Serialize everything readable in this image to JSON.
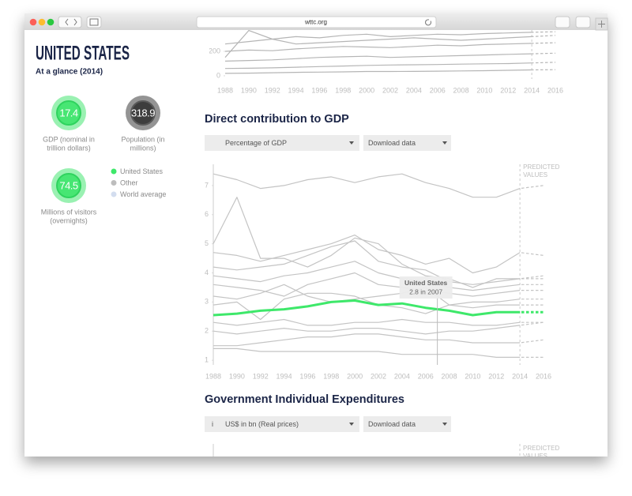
{
  "browser": {
    "url": "wttc.org"
  },
  "sidebar": {
    "title": "UNITED STATES",
    "subtitle": "At a glance (2014)",
    "stats": [
      {
        "value": 17.4,
        "label": [
          "GDP (nominal in",
          "trillion dollars)"
        ],
        "color": "#47e673"
      },
      {
        "value": 318.9,
        "label": [
          "Population (in",
          "millions)"
        ],
        "color": "#3d3d3d"
      },
      {
        "value": 74.5,
        "label": [
          "Millions of visitors",
          "(overnights)"
        ],
        "color": "#47e673"
      }
    ],
    "legend": [
      {
        "name": "United States",
        "color": "#3ee86a"
      },
      {
        "name": "Other",
        "color": "#bdbdbd"
      },
      {
        "name": "World average",
        "color": "#d3ddef"
      }
    ]
  },
  "top_chart": {
    "type": "line",
    "x": [
      1988,
      1990,
      1992,
      1994,
      1996,
      1998,
      2000,
      2002,
      2004,
      2006,
      2008,
      2010,
      2012,
      2014,
      2016
    ],
    "xlim": [
      1988,
      2016
    ],
    "xticks": [
      1988,
      1990,
      1992,
      1994,
      1996,
      1998,
      2000,
      2002,
      2004,
      2006,
      2008,
      2010,
      2012,
      2014,
      2016
    ],
    "ylim": [
      -26,
      374
    ],
    "yticks": [
      0,
      200
    ],
    "predicted_from": 2014,
    "series": [
      {
        "color": "#b5b5b5",
        "values": [
          20,
          22,
          25,
          28,
          30,
          32,
          35,
          35,
          36,
          38,
          40,
          42,
          45,
          48,
          50
        ]
      },
      {
        "color": "#b5b5b5",
        "values": [
          60,
          62,
          65,
          70,
          75,
          80,
          85,
          88,
          90,
          92,
          95,
          98,
          100,
          105,
          110
        ]
      },
      {
        "color": "#b5b5b5",
        "values": [
          120,
          125,
          130,
          140,
          150,
          155,
          160,
          150,
          155,
          160,
          165,
          170,
          175,
          180,
          185
        ]
      },
      {
        "color": "#b5b5b5",
        "values": [
          200,
          210,
          205,
          220,
          230,
          240,
          235,
          230,
          240,
          250,
          245,
          255,
          260,
          265,
          270
        ]
      },
      {
        "color": "#b5b5b5",
        "values": [
          260,
          280,
          300,
          320,
          310,
          330,
          340,
          320,
          330,
          340,
          335,
          345,
          350,
          355,
          360
        ]
      },
      {
        "color": "#b5b5b5",
        "values": [
          150,
          370,
          300,
          260,
          270,
          280,
          290,
          300,
          310,
          300,
          290,
          300,
          310,
          320,
          330
        ]
      }
    ]
  },
  "gdp_section": {
    "heading": "Direct contribution to GDP",
    "dropdown": "Percentage of GDP",
    "download": "Download data"
  },
  "chart_data": {
    "type": "line",
    "x": [
      1988,
      1990,
      1992,
      1994,
      1996,
      1998,
      2000,
      2002,
      2004,
      2006,
      2008,
      2010,
      2012,
      2014,
      2016
    ],
    "xlim": [
      1988,
      2016
    ],
    "xticks": [
      1988,
      1990,
      1992,
      1994,
      1996,
      1998,
      2000,
      2002,
      2004,
      2006,
      2008,
      2010,
      2012,
      2014,
      2016
    ],
    "ylim": [
      0.84,
      7.73
    ],
    "yticks": [
      1,
      2,
      3,
      4,
      5,
      6,
      7
    ],
    "predicted_from": 2014,
    "predicted_label": [
      "PREDICTED",
      "VALUES"
    ],
    "series": [
      {
        "color": "#c4c4c4",
        "values": [
          7.4,
          7.2,
          6.9,
          7.0,
          7.2,
          7.3,
          7.1,
          7.3,
          7.4,
          7.1,
          6.9,
          6.6,
          6.6,
          6.9,
          7.0
        ]
      },
      {
        "color": "#c4c4c4",
        "values": [
          5.0,
          6.6,
          4.5,
          4.5,
          4.2,
          4.6,
          5.2,
          5.0,
          4.3,
          3.9,
          3.8,
          3.5,
          3.8,
          3.8,
          3.9
        ]
      },
      {
        "color": "#c4c4c4",
        "values": [
          4.7,
          4.6,
          4.4,
          4.6,
          4.8,
          5.0,
          5.3,
          4.8,
          4.6,
          4.3,
          4.5,
          4.0,
          4.2,
          4.7,
          4.6
        ]
      },
      {
        "color": "#c4c4c4",
        "values": [
          4.2,
          4.1,
          4.2,
          4.3,
          4.6,
          4.9,
          5.1,
          4.4,
          4.2,
          4.1,
          3.7,
          3.6,
          3.7,
          3.8,
          3.8
        ]
      },
      {
        "color": "#c4c4c4",
        "values": [
          3.9,
          3.8,
          3.7,
          3.9,
          4.0,
          4.2,
          4.4,
          4.0,
          3.8,
          3.7,
          3.5,
          3.4,
          3.5,
          3.6,
          3.6
        ]
      },
      {
        "color": "#c4c4c4",
        "values": [
          3.6,
          3.5,
          3.4,
          3.2,
          3.6,
          3.8,
          4.0,
          3.6,
          3.5,
          3.4,
          3.3,
          3.2,
          3.3,
          3.4,
          3.4
        ]
      },
      {
        "color": "#c4c4c4",
        "values": [
          3.2,
          3.1,
          3.3,
          3.6,
          3.2,
          3.0,
          3.1,
          3.2,
          3.3,
          3.5,
          2.9,
          3.0,
          3.0,
          3.1,
          3.1
        ]
      },
      {
        "color": "#c4c4c4",
        "values": [
          2.9,
          3.0,
          2.4,
          3.1,
          3.3,
          3.3,
          3.2,
          2.9,
          2.8,
          2.6,
          2.9,
          2.8,
          2.9,
          2.9,
          2.9
        ]
      },
      {
        "color": "#c4c4c4",
        "values": [
          2.3,
          2.2,
          2.3,
          2.4,
          2.2,
          2.2,
          2.3,
          2.3,
          2.4,
          2.3,
          2.3,
          2.2,
          2.2,
          2.3,
          2.3
        ]
      },
      {
        "color": "#c4c4c4",
        "values": [
          2.0,
          1.9,
          2.0,
          2.1,
          2.0,
          2.0,
          2.1,
          2.1,
          2.0,
          1.9,
          2.0,
          2.0,
          2.1,
          2.2,
          2.3
        ]
      },
      {
        "color": "#c4c4c4",
        "values": [
          1.5,
          1.5,
          1.6,
          1.7,
          1.8,
          1.8,
          1.9,
          1.9,
          1.8,
          1.7,
          1.7,
          1.6,
          1.6,
          1.6,
          1.7
        ]
      },
      {
        "color": "#c4c4c4",
        "values": [
          1.4,
          1.4,
          1.3,
          1.3,
          1.3,
          1.3,
          1.3,
          1.3,
          1.2,
          1.2,
          1.2,
          1.2,
          1.1,
          1.1,
          1.1
        ]
      },
      {
        "color": "#3ee86a",
        "values": [
          2.55,
          2.6,
          2.7,
          2.75,
          2.85,
          3.0,
          3.05,
          2.9,
          2.95,
          2.8,
          2.7,
          2.55,
          2.65,
          2.65,
          2.65
        ]
      }
    ],
    "tooltip": {
      "title": "United States",
      "text": "2.8 in 2007",
      "x": 2007
    }
  },
  "gov_section": {
    "heading": "Government Individual Expenditures",
    "info": "i",
    "dropdown": "US$ in bn (Real prices)",
    "download": "Download data",
    "predicted_label": [
      "PREDICTED",
      "VALUES"
    ]
  }
}
